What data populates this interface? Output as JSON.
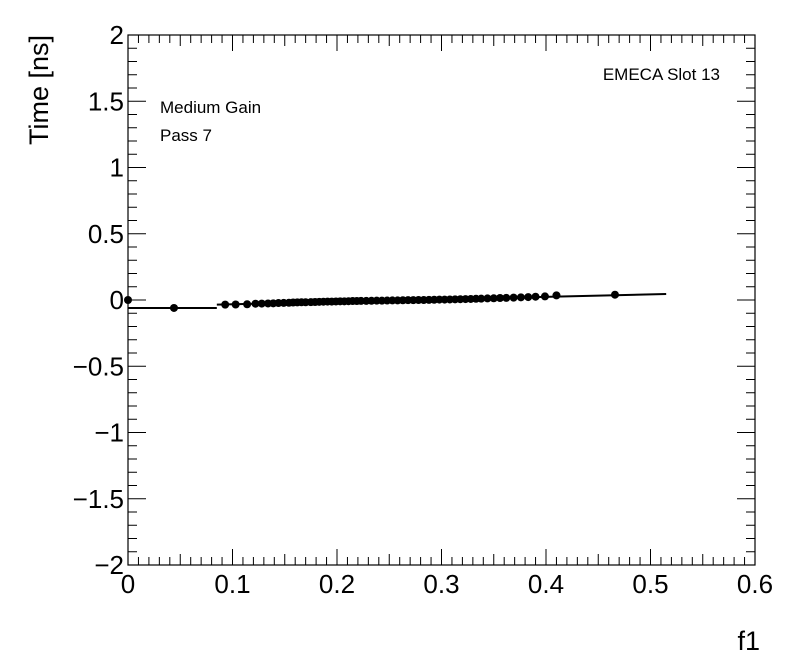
{
  "chart_data": {
    "type": "scatter",
    "xlabel": "f1",
    "ylabel": "Time [ns]",
    "xlim": [
      0,
      0.6
    ],
    "ylim": [
      -2,
      2
    ],
    "x_ticks": [
      0,
      0.1,
      0.2,
      0.3,
      0.4,
      0.5,
      0.6
    ],
    "x_tick_labels": [
      "0",
      "0.1",
      "0.2",
      "0.3",
      "0.4",
      "0.5",
      "0.6"
    ],
    "y_ticks": [
      -2,
      -1.5,
      -1,
      -0.5,
      0,
      0.5,
      1,
      1.5,
      2
    ],
    "y_tick_labels": [
      "−2",
      "−1.5",
      "−1",
      "−0.5",
      "0",
      "0.5",
      "1",
      "1.5",
      "2"
    ],
    "grid": false,
    "annotations": [
      "Medium Gain",
      "Pass 7",
      "EMECA Slot 13"
    ],
    "marker_color": "#000000",
    "fit_segments": [
      {
        "x": [
          -0.01,
          0.085
        ],
        "y": [
          -0.06,
          -0.06
        ]
      },
      {
        "x": [
          0.085,
          0.515
        ],
        "y": [
          -0.035,
          0.045
        ]
      }
    ],
    "points": [
      {
        "x": 0.0,
        "y": 0.0
      },
      {
        "x": 0.044,
        "y": -0.06
      },
      {
        "x": 0.093,
        "y": -0.035
      },
      {
        "x": 0.103,
        "y": -0.034
      },
      {
        "x": 0.114,
        "y": -0.032
      },
      {
        "x": 0.122,
        "y": -0.028
      },
      {
        "x": 0.128,
        "y": -0.027
      },
      {
        "x": 0.134,
        "y": -0.026
      },
      {
        "x": 0.139,
        "y": -0.025
      },
      {
        "x": 0.144,
        "y": -0.023
      },
      {
        "x": 0.149,
        "y": -0.022
      },
      {
        "x": 0.154,
        "y": -0.021
      },
      {
        "x": 0.158,
        "y": -0.019
      },
      {
        "x": 0.162,
        "y": -0.018
      },
      {
        "x": 0.166,
        "y": -0.017
      },
      {
        "x": 0.17,
        "y": -0.017
      },
      {
        "x": 0.175,
        "y": -0.016
      },
      {
        "x": 0.179,
        "y": -0.015
      },
      {
        "x": 0.183,
        "y": -0.014
      },
      {
        "x": 0.187,
        "y": -0.013
      },
      {
        "x": 0.191,
        "y": -0.012
      },
      {
        "x": 0.195,
        "y": -0.012
      },
      {
        "x": 0.199,
        "y": -0.011
      },
      {
        "x": 0.203,
        "y": -0.01
      },
      {
        "x": 0.207,
        "y": -0.01
      },
      {
        "x": 0.211,
        "y": -0.009
      },
      {
        "x": 0.215,
        "y": -0.008
      },
      {
        "x": 0.219,
        "y": -0.008
      },
      {
        "x": 0.223,
        "y": -0.007
      },
      {
        "x": 0.228,
        "y": -0.007
      },
      {
        "x": 0.233,
        "y": -0.006
      },
      {
        "x": 0.238,
        "y": -0.005
      },
      {
        "x": 0.243,
        "y": -0.005
      },
      {
        "x": 0.248,
        "y": -0.004
      },
      {
        "x": 0.253,
        "y": -0.003
      },
      {
        "x": 0.258,
        "y": -0.003
      },
      {
        "x": 0.263,
        "y": -0.002
      },
      {
        "x": 0.268,
        "y": -0.001
      },
      {
        "x": 0.273,
        "y": -0.001
      },
      {
        "x": 0.278,
        "y": 0.0
      },
      {
        "x": 0.283,
        "y": 0.0
      },
      {
        "x": 0.288,
        "y": 0.001
      },
      {
        "x": 0.293,
        "y": 0.002
      },
      {
        "x": 0.298,
        "y": 0.003
      },
      {
        "x": 0.303,
        "y": 0.003
      },
      {
        "x": 0.308,
        "y": 0.004
      },
      {
        "x": 0.313,
        "y": 0.005
      },
      {
        "x": 0.318,
        "y": 0.006
      },
      {
        "x": 0.323,
        "y": 0.007
      },
      {
        "x": 0.328,
        "y": 0.008
      },
      {
        "x": 0.333,
        "y": 0.009
      },
      {
        "x": 0.338,
        "y": 0.01
      },
      {
        "x": 0.344,
        "y": 0.012
      },
      {
        "x": 0.35,
        "y": 0.013
      },
      {
        "x": 0.356,
        "y": 0.015
      },
      {
        "x": 0.362,
        "y": 0.016
      },
      {
        "x": 0.369,
        "y": 0.018
      },
      {
        "x": 0.376,
        "y": 0.02
      },
      {
        "x": 0.383,
        "y": 0.022
      },
      {
        "x": 0.39,
        "y": 0.025
      },
      {
        "x": 0.399,
        "y": 0.027
      },
      {
        "x": 0.41,
        "y": 0.035
      },
      {
        "x": 0.466,
        "y": 0.04
      }
    ]
  }
}
